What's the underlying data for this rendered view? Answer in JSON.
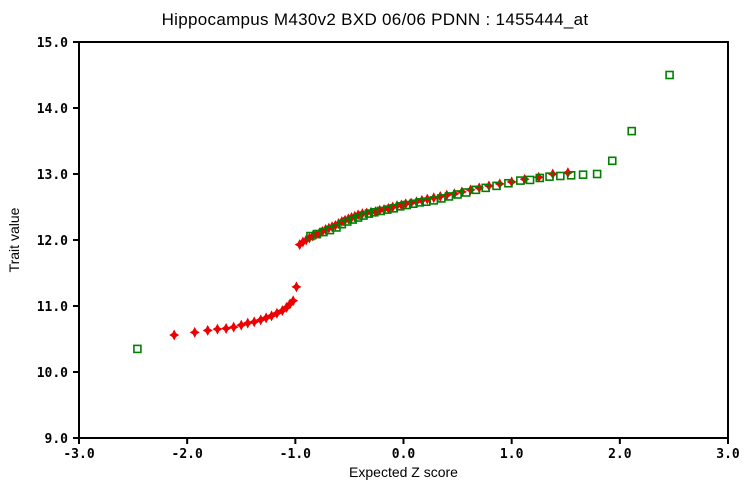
{
  "chart_data": {
    "type": "scatter",
    "title": "Hippocampus M430v2 BXD 06/06 PDNN : 1455444_at",
    "xlabel": "Expected Z score",
    "ylabel": "Trait value",
    "xlim": [
      -3.0,
      3.0
    ],
    "ylim": [
      9.0,
      15.0
    ],
    "grid": false,
    "legend": "none",
    "axis_color": "#000000",
    "background_color": "#ffffff",
    "xticks": {
      "values": [
        -3,
        -2,
        -1,
        0,
        1,
        2,
        3
      ],
      "labels": [
        "-3.0",
        "-2.0",
        "-1.0",
        "0.0",
        "1.0",
        "2.0",
        "3.0"
      ]
    },
    "yticks": {
      "values": [
        9,
        10,
        11,
        12,
        13,
        14,
        15
      ],
      "labels": [
        "9.0",
        "10.0",
        "11.0",
        "12.0",
        "13.0",
        "14.0",
        "15.0"
      ]
    },
    "series": [
      {
        "name": "trait-values-red-diamonds",
        "marker": "diamond",
        "color": "#ee0000",
        "points": [
          [
            -2.12,
            10.56
          ],
          [
            -1.93,
            10.6
          ],
          [
            -1.81,
            10.63
          ],
          [
            -1.72,
            10.65
          ],
          [
            -1.64,
            10.66
          ],
          [
            -1.57,
            10.68
          ],
          [
            -1.5,
            10.71
          ],
          [
            -1.44,
            10.74
          ],
          [
            -1.38,
            10.76
          ],
          [
            -1.32,
            10.79
          ],
          [
            -1.27,
            10.82
          ],
          [
            -1.22,
            10.85
          ],
          [
            -1.17,
            10.89
          ],
          [
            -1.12,
            10.93
          ],
          [
            -1.08,
            10.98
          ],
          [
            -1.05,
            11.03
          ],
          [
            -1.02,
            11.08
          ],
          [
            -0.99,
            11.29
          ],
          [
            -0.96,
            11.93
          ],
          [
            -0.93,
            11.97
          ],
          [
            -0.9,
            12.0
          ],
          [
            -0.87,
            12.03
          ],
          [
            -0.84,
            12.06
          ],
          [
            -0.81,
            12.08
          ],
          [
            -0.78,
            12.1
          ],
          [
            -0.75,
            12.13
          ],
          [
            -0.72,
            12.16
          ],
          [
            -0.69,
            12.18
          ],
          [
            -0.66,
            12.2
          ],
          [
            -0.63,
            12.22
          ],
          [
            -0.6,
            12.25
          ],
          [
            -0.57,
            12.28
          ],
          [
            -0.54,
            12.3
          ],
          [
            -0.51,
            12.32
          ],
          [
            -0.48,
            12.34
          ],
          [
            -0.45,
            12.36
          ],
          [
            -0.42,
            12.38
          ],
          [
            -0.38,
            12.4
          ],
          [
            -0.34,
            12.41
          ],
          [
            -0.3,
            12.42
          ],
          [
            -0.26,
            12.43
          ],
          [
            -0.22,
            12.45
          ],
          [
            -0.18,
            12.46
          ],
          [
            -0.14,
            12.48
          ],
          [
            -0.1,
            12.5
          ],
          [
            -0.06,
            12.52
          ],
          [
            -0.02,
            12.53
          ],
          [
            0.02,
            12.55
          ],
          [
            0.07,
            12.56
          ],
          [
            0.12,
            12.58
          ],
          [
            0.17,
            12.6
          ],
          [
            0.22,
            12.62
          ],
          [
            0.28,
            12.64
          ],
          [
            0.34,
            12.66
          ],
          [
            0.4,
            12.68
          ],
          [
            0.47,
            12.7
          ],
          [
            0.54,
            12.73
          ],
          [
            0.62,
            12.76
          ],
          [
            0.7,
            12.79
          ],
          [
            0.79,
            12.82
          ],
          [
            0.89,
            12.85
          ],
          [
            1.0,
            12.88
          ],
          [
            1.12,
            12.92
          ],
          [
            1.25,
            12.95
          ],
          [
            1.38,
            13.0
          ],
          [
            1.52,
            13.02
          ]
        ]
      },
      {
        "name": "reference-green-open-squares",
        "marker": "open-square",
        "color": "#007f00",
        "points": [
          [
            -2.46,
            10.35
          ],
          [
            -0.86,
            12.06
          ],
          [
            -0.8,
            12.09
          ],
          [
            -0.74,
            12.12
          ],
          [
            -0.68,
            12.15
          ],
          [
            -0.62,
            12.19
          ],
          [
            -0.57,
            12.24
          ],
          [
            -0.52,
            12.28
          ],
          [
            -0.47,
            12.31
          ],
          [
            -0.42,
            12.34
          ],
          [
            -0.37,
            12.37
          ],
          [
            -0.32,
            12.4
          ],
          [
            -0.27,
            12.42
          ],
          [
            -0.21,
            12.44
          ],
          [
            -0.15,
            12.46
          ],
          [
            -0.09,
            12.48
          ],
          [
            -0.03,
            12.51
          ],
          [
            0.03,
            12.53
          ],
          [
            0.09,
            12.55
          ],
          [
            0.15,
            12.57
          ],
          [
            0.21,
            12.58
          ],
          [
            0.28,
            12.6
          ],
          [
            0.35,
            12.63
          ],
          [
            0.42,
            12.66
          ],
          [
            0.5,
            12.69
          ],
          [
            0.58,
            12.72
          ],
          [
            0.67,
            12.76
          ],
          [
            0.76,
            12.79
          ],
          [
            0.86,
            12.82
          ],
          [
            0.97,
            12.86
          ],
          [
            1.08,
            12.9
          ],
          [
            1.17,
            12.91
          ],
          [
            1.26,
            12.94
          ],
          [
            1.35,
            12.96
          ],
          [
            1.45,
            12.97
          ],
          [
            1.55,
            12.98
          ],
          [
            1.66,
            12.99
          ],
          [
            1.79,
            13.0
          ],
          [
            1.93,
            13.2
          ],
          [
            2.11,
            13.65
          ],
          [
            2.46,
            14.5
          ]
        ]
      }
    ]
  }
}
